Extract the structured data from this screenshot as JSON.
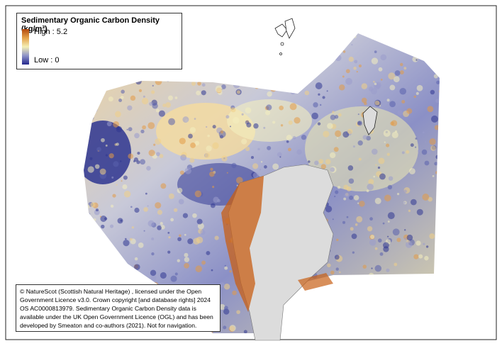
{
  "legend": {
    "title": "Sedimentary Organic Carbon Density (kg/m³)",
    "high": "High : 5.2",
    "low": "Low : 0"
  },
  "attribution": {
    "lines": [
      "© NatureScot (Scottish Natural Heritage) , licensed under the Open",
      "Government Licence v3.0. Crown copyright [and database rights] 2024",
      "OS AC0000813979. Sedimentary Organic Carbon Density data is",
      "available under the UK Open Government Licence (OGL) and has been",
      "developed by Smeaton and co-authors (2021). Not for navigation."
    ]
  }
}
